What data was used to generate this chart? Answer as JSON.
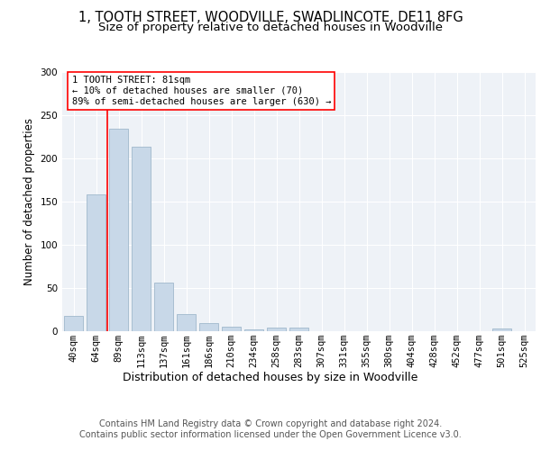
{
  "title": "1, TOOTH STREET, WOODVILLE, SWADLINCOTE, DE11 8FG",
  "subtitle": "Size of property relative to detached houses in Woodville",
  "xlabel": "Distribution of detached houses by size in Woodville",
  "ylabel": "Number of detached properties",
  "bar_color": "#c8d8e8",
  "bar_edge_color": "#a0b8cc",
  "bins": [
    "40sqm",
    "64sqm",
    "89sqm",
    "113sqm",
    "137sqm",
    "161sqm",
    "186sqm",
    "210sqm",
    "234sqm",
    "258sqm",
    "283sqm",
    "307sqm",
    "331sqm",
    "355sqm",
    "380sqm",
    "404sqm",
    "428sqm",
    "452sqm",
    "477sqm",
    "501sqm",
    "525sqm"
  ],
  "values": [
    17,
    158,
    234,
    213,
    56,
    19,
    9,
    5,
    2,
    4,
    4,
    0,
    0,
    0,
    0,
    0,
    0,
    0,
    0,
    3,
    0
  ],
  "vline_x": 1.5,
  "annotation_text": "1 TOOTH STREET: 81sqm\n← 10% of detached houses are smaller (70)\n89% of semi-detached houses are larger (630) →",
  "annotation_box_color": "white",
  "annotation_box_edge_color": "red",
  "vline_color": "red",
  "ylim": [
    0,
    300
  ],
  "yticks": [
    0,
    50,
    100,
    150,
    200,
    250,
    300
  ],
  "footer_line1": "Contains HM Land Registry data © Crown copyright and database right 2024.",
  "footer_line2": "Contains public sector information licensed under the Open Government Licence v3.0.",
  "background_color": "#eef2f7",
  "grid_color": "white",
  "title_fontsize": 10.5,
  "subtitle_fontsize": 9.5,
  "xlabel_fontsize": 9,
  "ylabel_fontsize": 8.5,
  "tick_fontsize": 7.5,
  "annotation_fontsize": 7.5,
  "footer_fontsize": 7
}
